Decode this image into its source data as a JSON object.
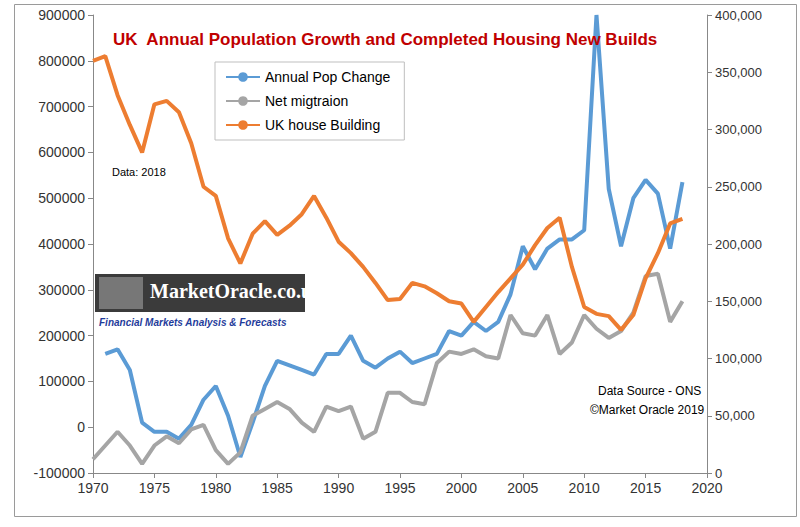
{
  "chart_data": {
    "type": "line",
    "title": "UK  Annual Population Growth and Completed Housing New Builds",
    "annotations": [
      "Data: 2018",
      "Data Source - ONS",
      "©Market Oracle 2019",
      "MarketOracle.co.uk",
      "Financial Markets Analysis & Forecasts"
    ],
    "x": [
      1970,
      1971,
      1972,
      1973,
      1974,
      1975,
      1976,
      1977,
      1978,
      1979,
      1980,
      1981,
      1982,
      1983,
      1984,
      1985,
      1986,
      1987,
      1988,
      1989,
      1990,
      1991,
      1992,
      1993,
      1994,
      1995,
      1996,
      1997,
      1998,
      1999,
      2000,
      2001,
      2002,
      2003,
      2004,
      2005,
      2006,
      2007,
      2008,
      2009,
      2010,
      2011,
      2012,
      2013,
      2014,
      2015,
      2016,
      2017,
      2018
    ],
    "series": [
      {
        "name": "Annual Pop Change",
        "color": "#5b9bd5",
        "axis": "y",
        "values": [
          null,
          160000,
          170000,
          125000,
          10000,
          -10000,
          -10000,
          -25000,
          5000,
          60000,
          90000,
          25000,
          -65000,
          10000,
          90000,
          145000,
          135000,
          125000,
          115000,
          160000,
          160000,
          200000,
          145000,
          130000,
          150000,
          165000,
          140000,
          150000,
          160000,
          210000,
          200000,
          230000,
          210000,
          230000,
          290000,
          395000,
          345000,
          390000,
          410000,
          410000,
          430000,
          900000,
          520000,
          395000,
          500000,
          540000,
          510000,
          390000,
          535000
        ]
      },
      {
        "name": "Net migtraion",
        "color": "#a5a5a5",
        "axis": "y",
        "values": [
          -70000,
          -40000,
          -10000,
          -40000,
          -80000,
          -40000,
          -20000,
          -35000,
          -5000,
          5000,
          -50000,
          -80000,
          -55000,
          25000,
          40000,
          55000,
          40000,
          10000,
          -10000,
          45000,
          35000,
          45000,
          -25000,
          -10000,
          75000,
          75000,
          55000,
          50000,
          140000,
          165000,
          160000,
          170000,
          155000,
          150000,
          245000,
          205000,
          200000,
          245000,
          160000,
          185000,
          245000,
          215000,
          195000,
          210000,
          250000,
          330000,
          335000,
          230000,
          275000
        ]
      },
      {
        "name": "UK house Building",
        "color": "#ed7d31",
        "axis": "y2",
        "values": [
          360000,
          364000,
          330000,
          304000,
          280000,
          322000,
          325000,
          315000,
          288000,
          250000,
          242000,
          205000,
          183000,
          209000,
          220000,
          208000,
          216000,
          226000,
          242000,
          223000,
          202000,
          192000,
          180000,
          166000,
          151000,
          152000,
          166000,
          163000,
          157000,
          150000,
          148000,
          132000,
          145000,
          158000,
          170000,
          182000,
          199000,
          214000,
          223000,
          180000,
          145000,
          139000,
          137000,
          125000,
          138000,
          170000,
          192000,
          218000,
          222000
        ]
      }
    ],
    "xlim": [
      1970,
      2020
    ],
    "xticks": [
      1970,
      1975,
      1980,
      1985,
      1990,
      1995,
      2000,
      2005,
      2010,
      2015,
      2020
    ],
    "ylim": [
      -100000,
      900000
    ],
    "yticks": [
      -100000,
      0,
      100000,
      200000,
      300000,
      400000,
      500000,
      600000,
      700000,
      800000,
      900000
    ],
    "y2lim": [
      0,
      400000
    ],
    "y2ticks": [
      0,
      {
        "value": 50000,
        "label": "50,000"
      },
      {
        "value": 100000,
        "label": "100,000"
      },
      {
        "value": 150000,
        "label": "150,000"
      },
      {
        "value": 200000,
        "label": "200,000"
      },
      {
        "value": 250000,
        "label": "250,000"
      },
      {
        "value": 300000,
        "label": "300,000"
      },
      {
        "value": 350000,
        "label": "350,000"
      },
      {
        "value": 400000,
        "label": "400,000"
      }
    ],
    "grid": false,
    "legend": "upper left",
    "marker": "none"
  }
}
